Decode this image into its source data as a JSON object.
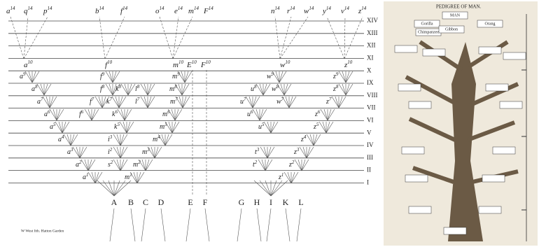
{
  "diagram": {
    "generations": [
      "XIV",
      "XIII",
      "XII",
      "XI",
      "X",
      "IX",
      "VIII",
      "VII",
      "VI",
      "V",
      "IV",
      "III",
      "II",
      "I"
    ],
    "top_labels": [
      {
        "letter": "a",
        "sup": "14"
      },
      {
        "letter": "q",
        "sup": "14"
      },
      {
        "letter": "p",
        "sup": "14"
      },
      {
        "letter": "b",
        "sup": "14"
      },
      {
        "letter": "f",
        "sup": "14"
      },
      {
        "letter": "o",
        "sup": "14"
      },
      {
        "letter": "e",
        "sup": "14"
      },
      {
        "letter": "m",
        "sup": "14"
      },
      {
        "letter": "F",
        "sup": "14"
      },
      {
        "letter": "n",
        "sup": "14"
      },
      {
        "letter": "r",
        "sup": "14"
      },
      {
        "letter": "w",
        "sup": "14"
      },
      {
        "letter": "y",
        "sup": "14"
      },
      {
        "letter": "v",
        "sup": "14"
      },
      {
        "letter": "z",
        "sup": "14"
      }
    ],
    "gen10_labels": [
      {
        "letter": "a",
        "sup": "10"
      },
      {
        "letter": "f",
        "sup": "10"
      },
      {
        "letter": "m",
        "sup": "10"
      },
      {
        "letter": "E",
        "sup": "10"
      },
      {
        "letter": "F",
        "sup": "10"
      },
      {
        "letter": "w",
        "sup": "10"
      },
      {
        "letter": "z",
        "sup": "10"
      }
    ],
    "inner_labels": [
      {
        "letter": "a",
        "sup": "9"
      },
      {
        "letter": "a",
        "sup": "8"
      },
      {
        "letter": "a",
        "sup": "7"
      },
      {
        "letter": "a",
        "sup": "6"
      },
      {
        "letter": "a",
        "sup": "5"
      },
      {
        "letter": "a",
        "sup": "4"
      },
      {
        "letter": "a",
        "sup": "3"
      },
      {
        "letter": "a",
        "sup": "2"
      },
      {
        "letter": "a",
        "sup": "1"
      },
      {
        "letter": "f",
        "sup": "9"
      },
      {
        "letter": "f",
        "sup": "8"
      },
      {
        "letter": "f",
        "sup": "7"
      },
      {
        "letter": "f",
        "sup": "6"
      },
      {
        "letter": "k",
        "sup": "8"
      },
      {
        "letter": "k",
        "sup": "7"
      },
      {
        "letter": "k",
        "sup": "6"
      },
      {
        "letter": "k",
        "sup": "5"
      },
      {
        "letter": "l",
        "sup": "8"
      },
      {
        "letter": "l",
        "sup": "7"
      },
      {
        "letter": "i",
        "sup": "3"
      },
      {
        "letter": "i",
        "sup": "2"
      },
      {
        "letter": "s",
        "sup": "2"
      },
      {
        "letter": "m",
        "sup": "1"
      },
      {
        "letter": "m",
        "sup": "2"
      },
      {
        "letter": "m",
        "sup": "3"
      },
      {
        "letter": "m",
        "sup": "4"
      },
      {
        "letter": "m",
        "sup": "5"
      },
      {
        "letter": "m",
        "sup": "6"
      },
      {
        "letter": "m",
        "sup": "7"
      },
      {
        "letter": "m",
        "sup": "8"
      },
      {
        "letter": "m",
        "sup": "9"
      },
      {
        "letter": "u",
        "sup": "8"
      },
      {
        "letter": "u",
        "sup": "7"
      },
      {
        "letter": "u",
        "sup": "6"
      },
      {
        "letter": "u",
        "sup": "5"
      },
      {
        "letter": "w",
        "sup": "9"
      },
      {
        "letter": "w",
        "sup": "8"
      },
      {
        "letter": "w",
        "sup": "7"
      },
      {
        "letter": "z",
        "sup": "9"
      },
      {
        "letter": "z",
        "sup": "8"
      },
      {
        "letter": "z",
        "sup": "7"
      },
      {
        "letter": "z",
        "sup": "6"
      },
      {
        "letter": "z",
        "sup": "5"
      },
      {
        "letter": "z",
        "sup": "4"
      },
      {
        "letter": "z",
        "sup": "3"
      },
      {
        "letter": "z",
        "sup": "2"
      },
      {
        "letter": "z",
        "sup": "1"
      },
      {
        "letter": "t",
        "sup": "3"
      },
      {
        "letter": "t",
        "sup": "2"
      }
    ],
    "species": [
      "A",
      "B",
      "C",
      "D",
      "E",
      "F",
      "G",
      "H",
      "I",
      "K",
      "L"
    ],
    "credit": "W West lith. Hatton Garden"
  },
  "pedigree": {
    "title": "PEDIGREE OF MAN.",
    "labels": [
      "MAN",
      "Gorilla",
      "Chimpanzee",
      "Orang",
      "Gibbon"
    ]
  }
}
